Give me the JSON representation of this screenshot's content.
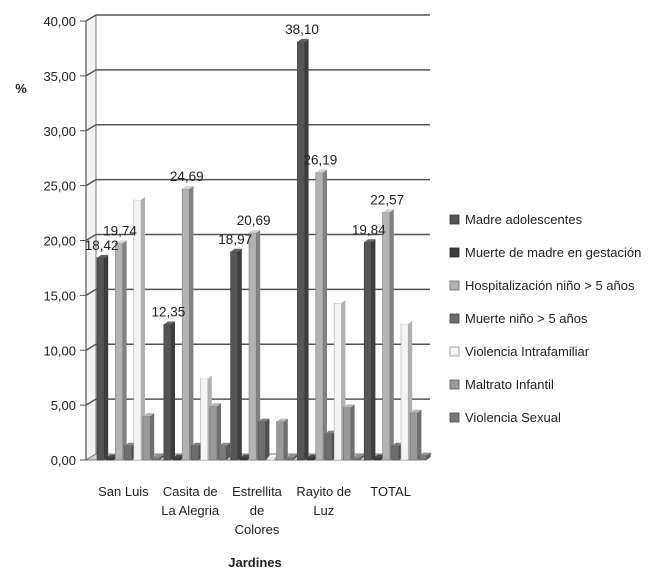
{
  "chart_data": {
    "type": "bar",
    "ylabel": "%",
    "xlabel": "Jardines",
    "ylim": [
      0,
      40
    ],
    "yticks": [
      "0,00",
      "5,00",
      "10,00",
      "15,00",
      "20,00",
      "25,00",
      "30,00",
      "35,00",
      "40,00"
    ],
    "categories": [
      [
        "San Luis"
      ],
      [
        "Casita de",
        "La Alegria"
      ],
      [
        "Estrellita",
        "de",
        "Colores"
      ],
      [
        "Rayito de",
        "Luz"
      ],
      [
        "TOTAL"
      ]
    ],
    "series": [
      {
        "name": "Madre adolescentes",
        "color": "#555555",
        "values": [
          18.42,
          12.35,
          18.97,
          38.1,
          19.84
        ],
        "labels": [
          "18,42",
          "12,35",
          "18,97",
          "38,10",
          "19,84"
        ]
      },
      {
        "name": "Muerte de madre en gestación",
        "color": "#3e3e3e",
        "values": [
          0.2,
          0.2,
          0.2,
          0.2,
          0.2
        ]
      },
      {
        "name": "Hospitalización niño > 5 años",
        "color": "#b3b3b3",
        "values": [
          19.74,
          24.69,
          20.69,
          26.19,
          22.57
        ],
        "labels": [
          "19,74",
          "24,69",
          "20,69",
          "26,19",
          "22,57"
        ]
      },
      {
        "name": "Muerte niño > 5 años",
        "color": "#6e6e6e",
        "values": [
          1.3,
          1.3,
          3.5,
          2.4,
          1.3
        ]
      },
      {
        "name": "Violencia Intrafamiliar",
        "color": "#f4f4f4",
        "values": [
          23.7,
          7.4,
          0.2,
          14.3,
          12.4
        ]
      },
      {
        "name": "Maltrato Infantil",
        "color": "#9a9a9a",
        "values": [
          4.0,
          4.9,
          3.5,
          4.8,
          4.3
        ]
      },
      {
        "name": "Violencia Sexual",
        "color": "#7a7a7a",
        "values": [
          0.2,
          1.3,
          0.2,
          0.2,
          0.4
        ]
      }
    ],
    "grid": true,
    "legend_position": "right"
  }
}
